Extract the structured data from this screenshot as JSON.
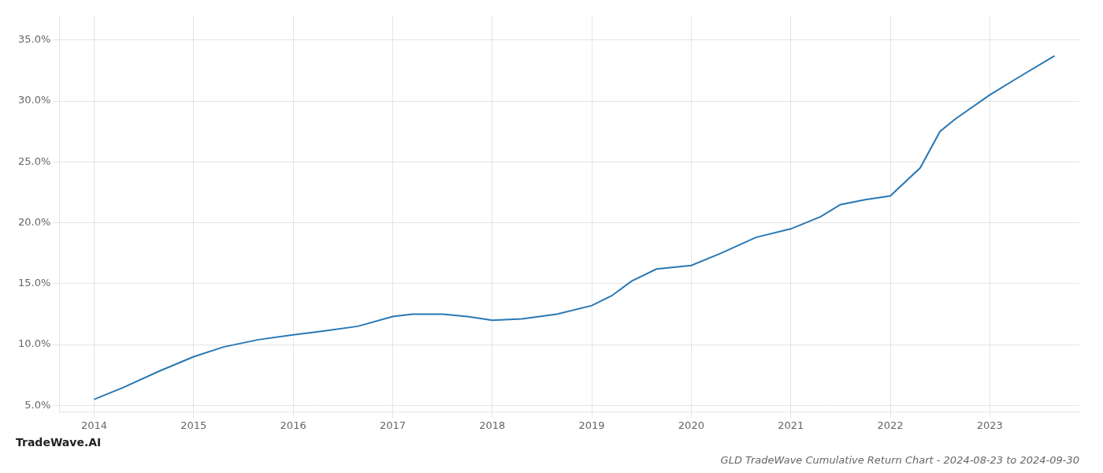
{
  "chart_data": {
    "type": "line",
    "title": "GLD TradeWave Cumulative Return Chart - 2024-08-23 to 2024-09-30",
    "annotations": [
      "TradeWave.AI"
    ],
    "x": [
      2014.0,
      2014.3,
      2014.65,
      2015.0,
      2015.3,
      2015.65,
      2016.0,
      2016.3,
      2016.65,
      2017.0,
      2017.2,
      2017.5,
      2017.75,
      2018.0,
      2018.3,
      2018.65,
      2019.0,
      2019.2,
      2019.4,
      2019.65,
      2020.0,
      2020.3,
      2020.65,
      2021.0,
      2021.3,
      2021.5,
      2021.75,
      2022.0,
      2022.3,
      2022.5,
      2022.65,
      2023.0,
      2023.3,
      2023.65
    ],
    "values": [
      5.5,
      6.5,
      7.8,
      9.0,
      9.8,
      10.4,
      10.8,
      11.1,
      11.5,
      12.3,
      12.5,
      12.5,
      12.3,
      12.0,
      12.1,
      12.5,
      13.2,
      14.0,
      15.2,
      16.2,
      16.5,
      17.5,
      18.8,
      19.5,
      20.5,
      21.5,
      21.9,
      22.2,
      24.5,
      27.5,
      28.5,
      30.5,
      32.0,
      33.7
    ],
    "color": "#2878b5",
    "xlim": [
      2013.65,
      2023.9
    ],
    "ylim": [
      4.5,
      37.0
    ],
    "xticks": [
      2014,
      2015,
      2016,
      2017,
      2018,
      2019,
      2020,
      2021,
      2022,
      2023
    ],
    "yticks": [
      {
        "value": 5.0,
        "label": "5.0%"
      },
      {
        "value": 10.0,
        "label": "10.0%"
      },
      {
        "value": 15.0,
        "label": "15.0%"
      },
      {
        "value": 20.0,
        "label": "20.0%"
      },
      {
        "value": 25.0,
        "label": "25.0%"
      },
      {
        "value": 30.0,
        "label": "30.0%"
      },
      {
        "value": 35.0,
        "label": "35.0%"
      }
    ],
    "grid": true
  }
}
